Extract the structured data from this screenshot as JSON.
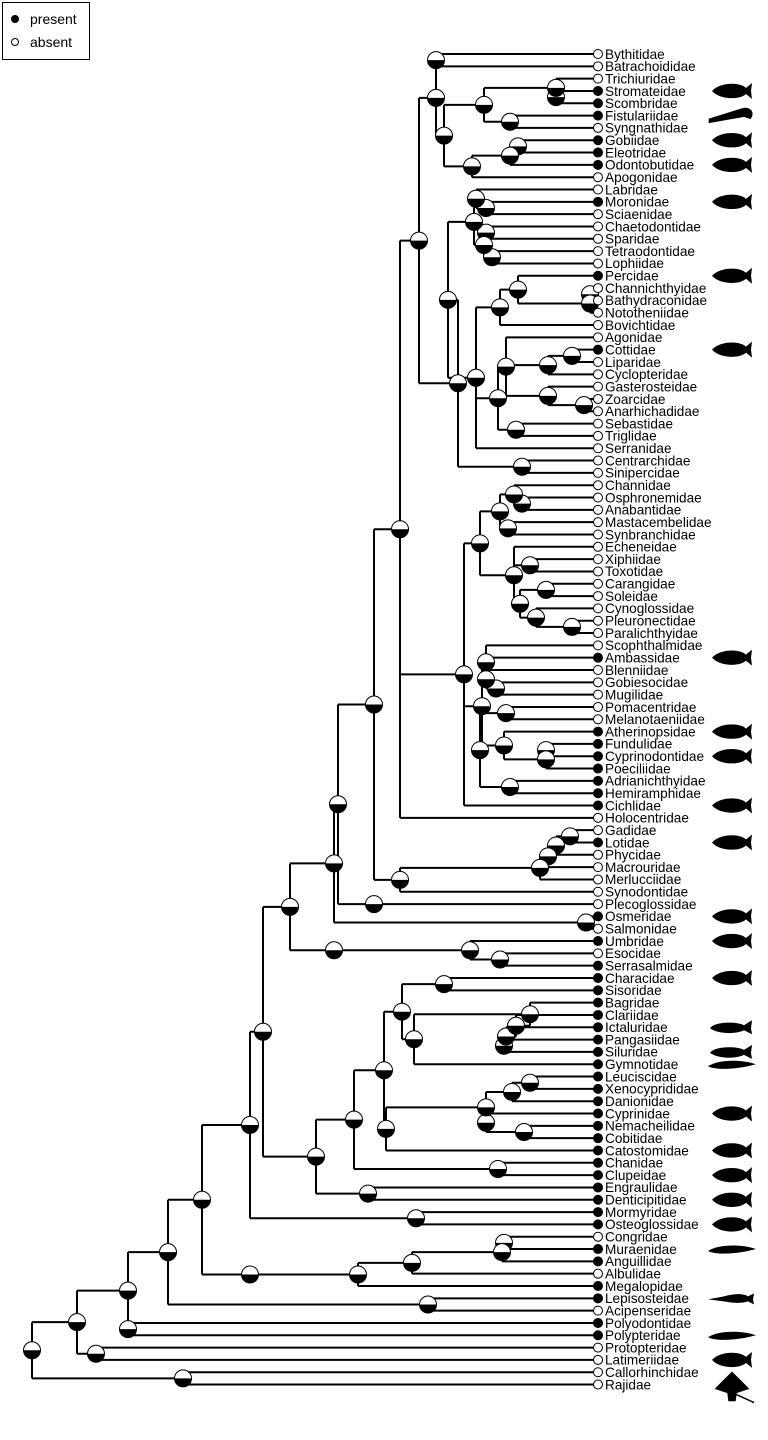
{
  "legend": {
    "present_label": "present",
    "absent_label": "absent"
  },
  "colors": {
    "present": "#000000",
    "absent": "#ffffff",
    "ink": "#000000"
  },
  "families": [
    {
      "name": "Bythitidae",
      "state": "absent"
    },
    {
      "name": "Batrachoididae",
      "state": "absent"
    },
    {
      "name": "Trichiuridae",
      "state": "absent"
    },
    {
      "name": "Stromateidae",
      "state": "present",
      "silhouette": "fish-icon"
    },
    {
      "name": "Scombridae",
      "state": "present"
    },
    {
      "name": "Fistulariidae",
      "state": "present",
      "silhouette": "pipefish-icon"
    },
    {
      "name": "Syngnathidae",
      "state": "absent"
    },
    {
      "name": "Gobiidae",
      "state": "present",
      "silhouette": "fish-icon"
    },
    {
      "name": "Eleotridae",
      "state": "present"
    },
    {
      "name": "Odontobutidae",
      "state": "present",
      "silhouette": "fish-icon"
    },
    {
      "name": "Apogonidae",
      "state": "absent"
    },
    {
      "name": "Labridae",
      "state": "absent"
    },
    {
      "name": "Moronidae",
      "state": "present",
      "silhouette": "fish-icon"
    },
    {
      "name": "Sciaenidae",
      "state": "absent"
    },
    {
      "name": "Chaetodontidae",
      "state": "absent"
    },
    {
      "name": "Sparidae",
      "state": "absent"
    },
    {
      "name": "Tetraodontidae",
      "state": "absent"
    },
    {
      "name": "Lophiidae",
      "state": "absent"
    },
    {
      "name": "Percidae",
      "state": "present",
      "silhouette": "fish-icon"
    },
    {
      "name": "Channichthyidae",
      "state": "absent"
    },
    {
      "name": "Bathydraconidae",
      "state": "absent"
    },
    {
      "name": "Nototheniidae",
      "state": "absent"
    },
    {
      "name": "Bovichtidae",
      "state": "absent"
    },
    {
      "name": "Agonidae",
      "state": "absent"
    },
    {
      "name": "Cottidae",
      "state": "present",
      "silhouette": "fish-icon"
    },
    {
      "name": "Liparidae",
      "state": "absent"
    },
    {
      "name": "Cyclopteridae",
      "state": "absent"
    },
    {
      "name": "Gasterosteidae",
      "state": "absent"
    },
    {
      "name": "Zoarcidae",
      "state": "absent"
    },
    {
      "name": "Anarhichadidae",
      "state": "absent"
    },
    {
      "name": "Sebastidae",
      "state": "absent"
    },
    {
      "name": "Triglidae",
      "state": "absent"
    },
    {
      "name": "Serranidae",
      "state": "absent"
    },
    {
      "name": "Centrarchidae",
      "state": "absent"
    },
    {
      "name": "Sinipercidae",
      "state": "absent"
    },
    {
      "name": "Channidae",
      "state": "absent"
    },
    {
      "name": "Osphronemidae",
      "state": "absent"
    },
    {
      "name": "Anabantidae",
      "state": "absent"
    },
    {
      "name": "Mastacembelidae",
      "state": "absent"
    },
    {
      "name": "Synbranchidae",
      "state": "absent"
    },
    {
      "name": "Echeneidae",
      "state": "absent"
    },
    {
      "name": "Xiphiidae",
      "state": "absent"
    },
    {
      "name": "Toxotidae",
      "state": "absent"
    },
    {
      "name": "Carangidae",
      "state": "absent"
    },
    {
      "name": "Soleidae",
      "state": "absent"
    },
    {
      "name": "Cynoglossidae",
      "state": "absent"
    },
    {
      "name": "Pleuronectidae",
      "state": "absent"
    },
    {
      "name": "Paralichthyidae",
      "state": "absent"
    },
    {
      "name": "Scophthalmidae",
      "state": "absent"
    },
    {
      "name": "Ambassidae",
      "state": "present",
      "silhouette": "fish-icon"
    },
    {
      "name": "Blenniidae",
      "state": "absent"
    },
    {
      "name": "Gobiesocidae",
      "state": "absent"
    },
    {
      "name": "Mugilidae",
      "state": "absent"
    },
    {
      "name": "Pomacentridae",
      "state": "absent"
    },
    {
      "name": "Melanotaeniidae",
      "state": "absent"
    },
    {
      "name": "Atherinopsidae",
      "state": "present",
      "silhouette": "fish-icon"
    },
    {
      "name": "Fundulidae",
      "state": "present"
    },
    {
      "name": "Cyprinodontidae",
      "state": "present",
      "silhouette": "fish-icon"
    },
    {
      "name": "Poeciliidae",
      "state": "present"
    },
    {
      "name": "Adrianichthyidae",
      "state": "present"
    },
    {
      "name": "Hemiramphidae",
      "state": "present"
    },
    {
      "name": "Cichlidae",
      "state": "present",
      "silhouette": "fish-icon"
    },
    {
      "name": "Holocentridae",
      "state": "absent"
    },
    {
      "name": "Gadidae",
      "state": "absent"
    },
    {
      "name": "Lotidae",
      "state": "present",
      "silhouette": "fish-icon"
    },
    {
      "name": "Phycidae",
      "state": "absent"
    },
    {
      "name": "Macrouridae",
      "state": "absent"
    },
    {
      "name": "Merlucciidae",
      "state": "absent"
    },
    {
      "name": "Synodontidae",
      "state": "absent"
    },
    {
      "name": "Plecoglossidae",
      "state": "absent"
    },
    {
      "name": "Osmeridae",
      "state": "present",
      "silhouette": "fish-icon"
    },
    {
      "name": "Salmonidae",
      "state": "absent"
    },
    {
      "name": "Umbridae",
      "state": "present",
      "silhouette": "fish-icon"
    },
    {
      "name": "Esocidae",
      "state": "absent"
    },
    {
      "name": "Serrasalmidae",
      "state": "present"
    },
    {
      "name": "Characidae",
      "state": "present",
      "silhouette": "fish-icon"
    },
    {
      "name": "Sisoridae",
      "state": "present"
    },
    {
      "name": "Bagridae",
      "state": "present"
    },
    {
      "name": "Clariidae",
      "state": "present"
    },
    {
      "name": "Ictaluridae",
      "state": "present",
      "silhouette": "catfish-icon"
    },
    {
      "name": "Pangasiidae",
      "state": "present"
    },
    {
      "name": "Siluridae",
      "state": "present",
      "silhouette": "catfish-icon"
    },
    {
      "name": "Gymnotidae",
      "state": "present",
      "silhouette": "eel-icon"
    },
    {
      "name": "Leuciscidae",
      "state": "present"
    },
    {
      "name": "Xenocyprididae",
      "state": "present"
    },
    {
      "name": "Danionidae",
      "state": "present"
    },
    {
      "name": "Cyprinidae",
      "state": "present",
      "silhouette": "fish-icon"
    },
    {
      "name": "Nemacheilidae",
      "state": "present"
    },
    {
      "name": "Cobitidae",
      "state": "present"
    },
    {
      "name": "Catostomidae",
      "state": "present",
      "silhouette": "fish-icon"
    },
    {
      "name": "Chanidae",
      "state": "present"
    },
    {
      "name": "Clupeidae",
      "state": "present",
      "silhouette": "fish-icon"
    },
    {
      "name": "Engraulidae",
      "state": "present"
    },
    {
      "name": "Denticipitidae",
      "state": "present",
      "silhouette": "fish-icon"
    },
    {
      "name": "Mormyridae",
      "state": "present"
    },
    {
      "name": "Osteoglossidae",
      "state": "present",
      "silhouette": "fish-icon"
    },
    {
      "name": "Congridae",
      "state": "absent"
    },
    {
      "name": "Muraenidae",
      "state": "present",
      "silhouette": "eel-icon"
    },
    {
      "name": "Anguillidae",
      "state": "present"
    },
    {
      "name": "Albulidae",
      "state": "absent"
    },
    {
      "name": "Megalopidae",
      "state": "present"
    },
    {
      "name": "Lepisosteidae",
      "state": "present",
      "silhouette": "gar-icon"
    },
    {
      "name": "Acipenseridae",
      "state": "absent"
    },
    {
      "name": "Polyodontidae",
      "state": "present"
    },
    {
      "name": "Polypteridae",
      "state": "present",
      "silhouette": "eel-icon"
    },
    {
      "name": "Protopteridae",
      "state": "absent"
    },
    {
      "name": "Latimeriidae",
      "state": "absent",
      "silhouette": "fish-icon"
    },
    {
      "name": "Callorhinchidae",
      "state": "absent"
    },
    {
      "name": "Rajidae",
      "state": "absent",
      "silhouette": "ray-icon"
    }
  ]
}
